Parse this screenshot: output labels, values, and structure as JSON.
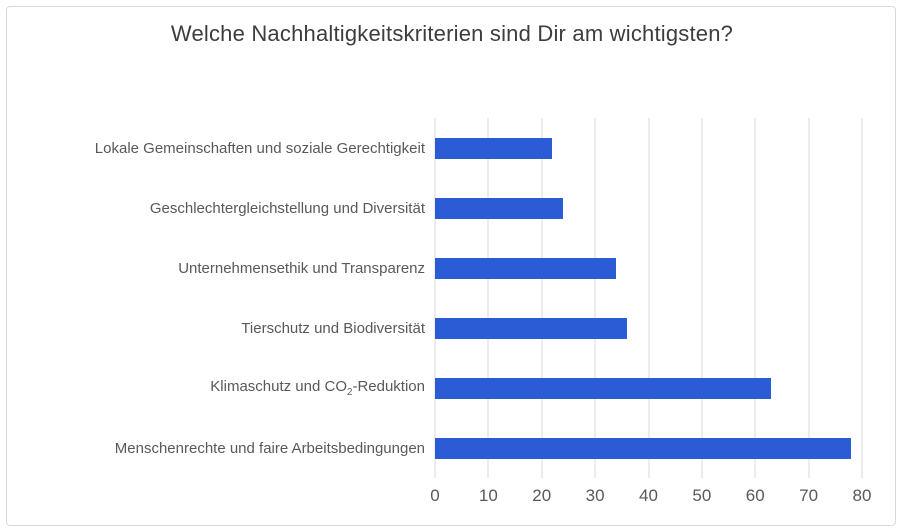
{
  "chart_data": {
    "type": "bar",
    "orientation": "horizontal",
    "title": "Welche Nachhaltigkeitskriterien sind Dir am wichtigsten?",
    "categories": [
      "Lokale Gemeinschaften und soziale Gerechtigkeit",
      "Geschlechtergleichstellung und Diversität",
      "Unternehmensethik und Transparenz",
      "Tierschutz und Biodiversität",
      "Klimaschutz und CO₂-Reduktion",
      "Menschenrechte und faire Arbeitsbedingungen"
    ],
    "values": [
      22,
      24,
      34,
      36,
      63,
      78
    ],
    "xlabel": "",
    "ylabel": "",
    "xlim": [
      0,
      80
    ],
    "x_ticks": [
      0,
      10,
      20,
      30,
      40,
      50,
      60,
      70,
      80
    ],
    "grid": true,
    "legend": false,
    "bar_color": "#2b5cd5",
    "gridline_color": "#d9d9d9",
    "frame_color": "#d9d9d9",
    "title_color": "#3d3d3d",
    "label_color": "#595959"
  }
}
